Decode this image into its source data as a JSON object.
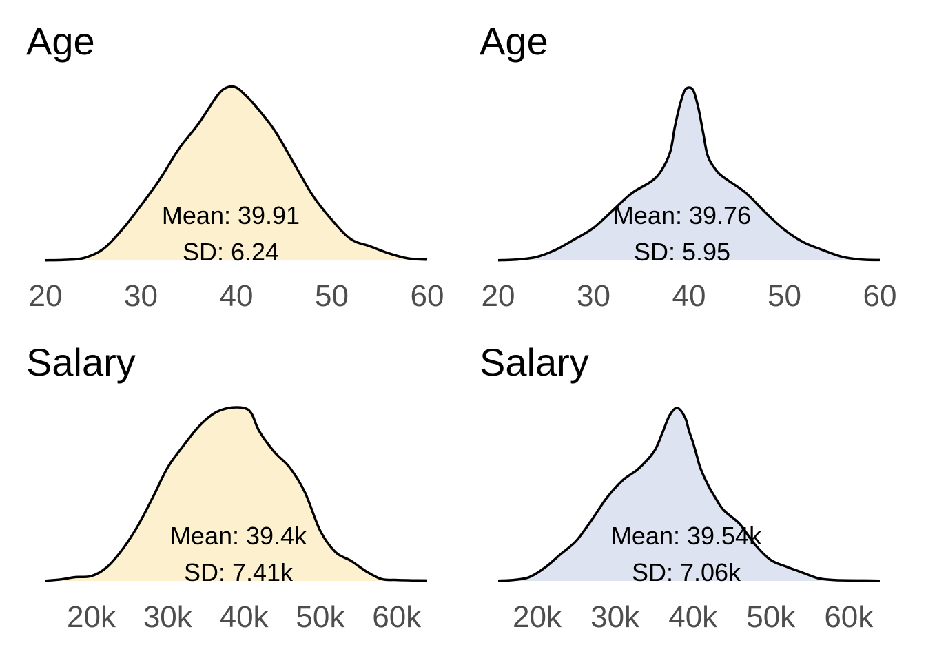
{
  "colors": {
    "fill_left": "#fcf0cf",
    "fill_right": "#dde3f0",
    "stroke": "#000000",
    "tick_text": "#4d4d4d"
  },
  "chart_data": [
    {
      "type": "area",
      "title": "Age",
      "fill": "#fcf0cf",
      "xlim": [
        20,
        60
      ],
      "ticks": [
        20,
        30,
        40,
        50,
        60
      ],
      "tick_labels": [
        "20",
        "30",
        "40",
        "50",
        "60"
      ],
      "x": [
        20,
        22,
        24,
        26,
        28,
        30,
        32,
        34,
        36,
        38,
        39,
        40,
        41,
        42,
        44,
        46,
        48,
        50,
        52,
        54,
        56,
        58,
        60
      ],
      "density": [
        0.01,
        0.03,
        0.12,
        0.55,
        1.5,
        2.7,
        4.0,
        5.5,
        6.7,
        8.1,
        8.5,
        8.5,
        8.1,
        7.6,
        6.4,
        4.8,
        3.2,
        2.0,
        1.05,
        0.7,
        0.35,
        0.1,
        0.04
      ],
      "mean_label": "Mean: 39.91",
      "sd_label": "SD: 6.24"
    },
    {
      "type": "area",
      "title": "Age",
      "fill": "#dde3f0",
      "xlim": [
        20,
        60
      ],
      "ticks": [
        20,
        30,
        40,
        50,
        60
      ],
      "tick_labels": [
        "20",
        "30",
        "40",
        "50",
        "60"
      ],
      "x": [
        20,
        22,
        24,
        26,
        28,
        30,
        32,
        34,
        36,
        37,
        38,
        38.5,
        39,
        39.5,
        40,
        40.5,
        41,
        41.5,
        42,
        43,
        44,
        46,
        48,
        50,
        52,
        54,
        56,
        58,
        60
      ],
      "density": [
        0.01,
        0.05,
        0.18,
        0.55,
        1.1,
        1.7,
        2.6,
        3.5,
        4.1,
        4.6,
        5.6,
        6.9,
        8.0,
        8.8,
        9.0,
        8.8,
        7.9,
        6.6,
        5.4,
        4.6,
        4.2,
        3.5,
        2.5,
        1.6,
        0.95,
        0.55,
        0.2,
        0.05,
        0.02
      ],
      "mean_label": "Mean: 39.76",
      "sd_label": "SD: 5.95"
    },
    {
      "type": "area",
      "title": "Salary",
      "fill": "#fcf0cf",
      "xlim": [
        14000,
        64000
      ],
      "ticks": [
        20000,
        30000,
        40000,
        50000,
        60000
      ],
      "tick_labels": [
        "20k",
        "30k",
        "40k",
        "50k",
        "60k"
      ],
      "x": [
        14000,
        16000,
        18000,
        20000,
        22000,
        24000,
        26000,
        28000,
        30000,
        32000,
        34000,
        36000,
        38000,
        40000,
        41000,
        42000,
        44000,
        46000,
        48000,
        50000,
        52000,
        54000,
        56000,
        58000,
        60000,
        62000,
        64000
      ],
      "density": [
        0.01,
        0.08,
        0.2,
        0.25,
        0.7,
        1.6,
        2.8,
        4.3,
        5.9,
        7.0,
        8.0,
        8.7,
        9.0,
        9.0,
        8.7,
        7.8,
        6.7,
        5.9,
        4.6,
        2.6,
        1.5,
        1.05,
        0.5,
        0.1,
        0.05,
        0.03,
        0.02
      ],
      "mean_label": "Mean: 39.4k",
      "sd_label": "SD: 7.41k"
    },
    {
      "type": "area",
      "title": "Salary",
      "fill": "#dde3f0",
      "xlim": [
        15000,
        64000
      ],
      "ticks": [
        20000,
        30000,
        40000,
        50000,
        60000
      ],
      "tick_labels": [
        "20k",
        "30k",
        "40k",
        "50k",
        "60k"
      ],
      "x": [
        15000,
        17000,
        19000,
        21000,
        23000,
        25000,
        27000,
        29000,
        31000,
        33000,
        35000,
        36000,
        37000,
        38000,
        39000,
        39500,
        40000,
        40500,
        41000,
        42000,
        43000,
        44000,
        46000,
        48000,
        50000,
        52000,
        54000,
        56000,
        58000,
        60000,
        62000,
        64000
      ],
      "density": [
        0.01,
        0.05,
        0.2,
        0.7,
        1.4,
        2.1,
        3.2,
        4.4,
        5.3,
        5.9,
        6.8,
        7.7,
        8.7,
        9.1,
        8.6,
        7.9,
        7.3,
        6.6,
        5.9,
        5.0,
        4.3,
        3.7,
        3.0,
        1.9,
        1.1,
        0.75,
        0.45,
        0.15,
        0.05,
        0.03,
        0.02,
        0.01
      ],
      "mean_label": "Mean: 39.54k",
      "sd_label": "SD: 7.06k"
    }
  ]
}
